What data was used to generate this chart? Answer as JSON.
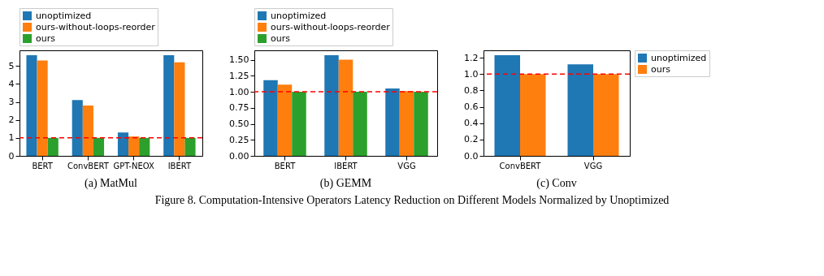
{
  "chart_data": [
    {
      "type": "bar",
      "title": "(a) MatMul",
      "categories": [
        "BERT",
        "ConvBERT",
        "GPT-NEOX",
        "IBERT"
      ],
      "series": [
        {
          "name": "unoptimized",
          "color": "#1f77b4",
          "values": [
            5.6,
            3.1,
            1.3,
            5.6
          ]
        },
        {
          "name": "ours-without-loops-reorder",
          "color": "#ff7f0e",
          "values": [
            5.3,
            2.8,
            1.08,
            5.2
          ]
        },
        {
          "name": "ours",
          "color": "#2ca02c",
          "values": [
            1.0,
            1.0,
            1.0,
            1.0
          ]
        }
      ],
      "ylim": [
        0,
        5.87
      ],
      "yticks": [
        0,
        1,
        2,
        3,
        4,
        5
      ],
      "grid": false,
      "legend": "top",
      "ref_lines": [
        {
          "axis": "y",
          "value": 1,
          "color": "#ff0000",
          "line_style": "dashed"
        }
      ],
      "annotations": [
        "Figure 8. Computation-Intensive Operators Latency Reduction on Different Models Normalized by Unoptimized"
      ]
    },
    {
      "type": "bar",
      "title": "(b) GEMM",
      "categories": [
        "BERT",
        "IBERT",
        "VGG"
      ],
      "series": [
        {
          "name": "unoptimized",
          "color": "#1f77b4",
          "values": [
            1.18,
            1.57,
            1.05
          ]
        },
        {
          "name": "ours-without-loops-reorder",
          "color": "#ff7f0e",
          "values": [
            1.11,
            1.5,
            1.01
          ]
        },
        {
          "name": "ours",
          "color": "#2ca02c",
          "values": [
            1.0,
            1.0,
            1.0
          ]
        }
      ],
      "ylim": [
        0,
        1.646
      ],
      "yticks": [
        {
          "value": 0,
          "label": "0.00"
        },
        0.25,
        {
          "value": 0.5,
          "label": "0.50"
        },
        0.75,
        {
          "value": 1,
          "label": "1.00"
        },
        1.25,
        {
          "value": 1.5,
          "label": "1.50"
        }
      ],
      "grid": false,
      "legend": "top",
      "ref_lines": [
        {
          "axis": "y",
          "value": 1,
          "color": "#ff0000",
          "line_style": "dashed"
        }
      ]
    },
    {
      "type": "bar",
      "title": "(c) Conv",
      "categories": [
        "ConvBERT",
        "VGG"
      ],
      "series": [
        {
          "name": "unoptimized",
          "color": "#1f77b4",
          "values": [
            1.23,
            1.12
          ]
        },
        {
          "name": "ours",
          "color": "#ff7f0e",
          "values": [
            1.0,
            1.0
          ]
        }
      ],
      "ylim": [
        0,
        1.29
      ],
      "yticks": [
        {
          "value": 0,
          "label": "0.0"
        },
        {
          "value": 0.2,
          "label": "0.2"
        },
        {
          "value": 0.4,
          "label": "0.4"
        },
        {
          "value": 0.6,
          "label": "0.6"
        },
        {
          "value": 0.8,
          "label": "0.8"
        },
        {
          "value": 1,
          "label": "1.0"
        },
        {
          "value": 1.2,
          "label": "1.2"
        }
      ],
      "grid": false,
      "legend": "right",
      "ref_lines": [
        {
          "axis": "y",
          "value": 1,
          "color": "#ff0000",
          "line_style": "dashed"
        }
      ]
    }
  ]
}
